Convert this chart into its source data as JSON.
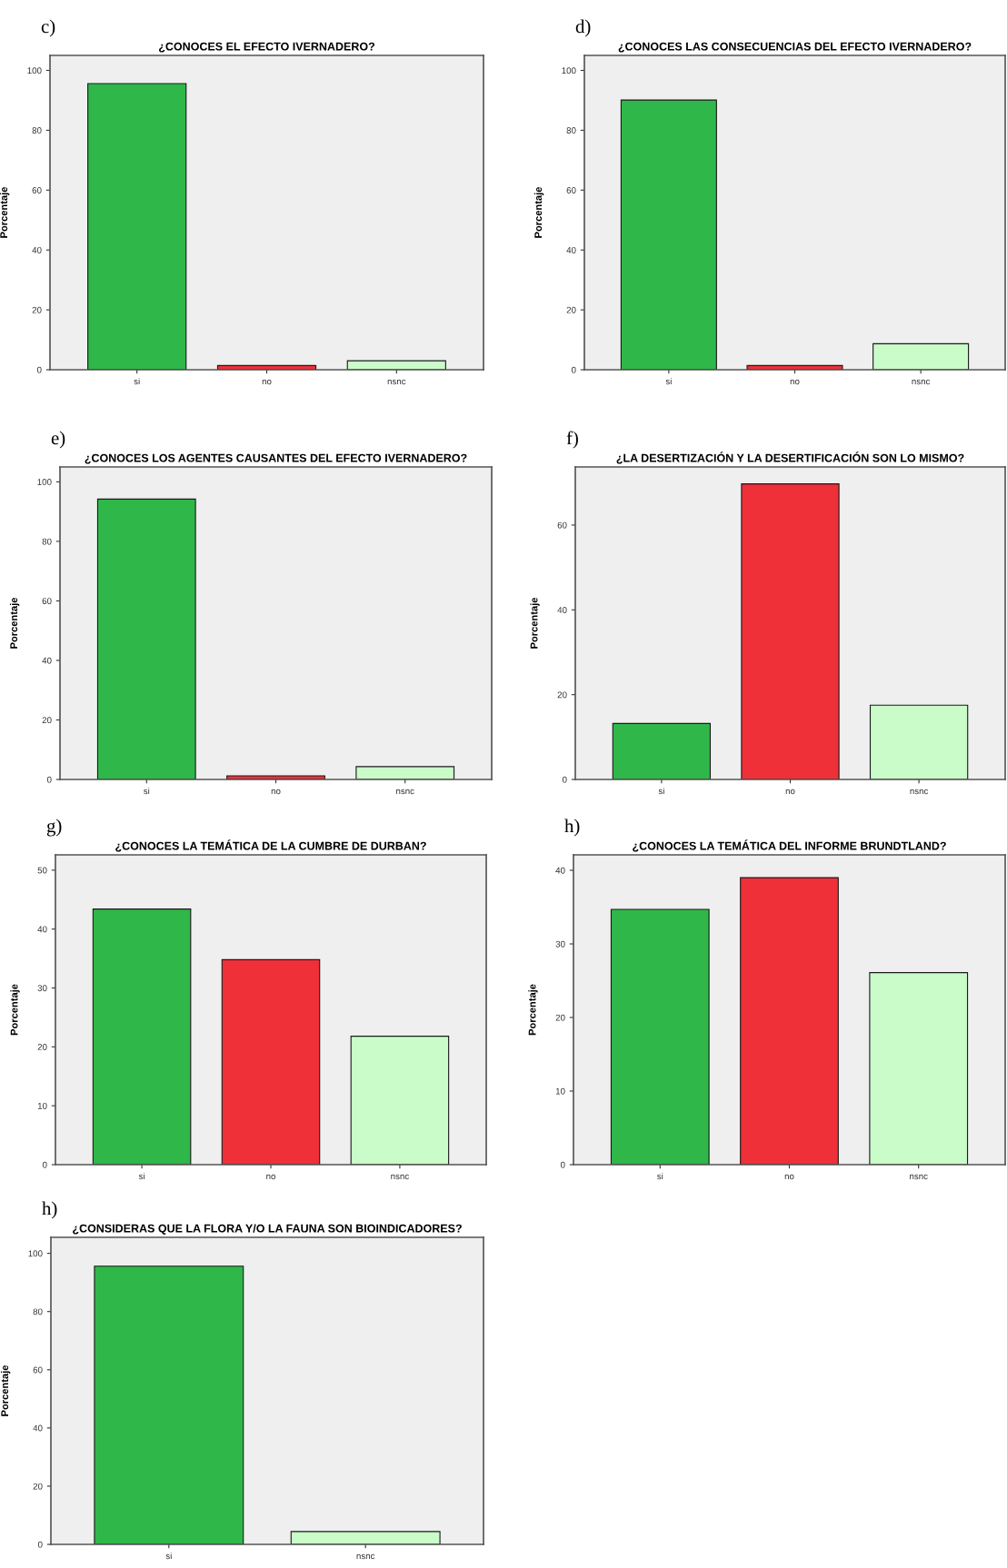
{
  "chart_data": [
    {
      "type": "bar",
      "title": "¿CONOCES EL EFECTO IVERNADERO?",
      "annotations": [
        "c)"
      ],
      "ylabel": "Porcentaje",
      "categories": [
        "si",
        "no",
        "nsnc"
      ],
      "values": [
        95.6,
        1.4,
        3.0
      ],
      "colors": [
        "#2fb74a",
        "#ef3038",
        "#c9fcc9"
      ],
      "ylim": [
        0,
        105
      ],
      "yticks": [
        0,
        20,
        40,
        60,
        80,
        100
      ],
      "grid": false,
      "legend": false
    },
    {
      "type": "bar",
      "title": "¿CONOCES LAS CONSECUENCIAS DEL EFECTO IVERNADERO?",
      "annotations": [
        "d)"
      ],
      "ylabel": "Porcentaje",
      "categories": [
        "si",
        "no",
        "nsnc"
      ],
      "values": [
        90.1,
        1.4,
        8.7
      ],
      "colors": [
        "#2fb74a",
        "#ef3038",
        "#c9fcc9"
      ],
      "ylim": [
        0,
        105
      ],
      "yticks": [
        0,
        20,
        40,
        60,
        80,
        100
      ],
      "grid": false,
      "legend": false
    },
    {
      "type": "bar",
      "title": "¿CONOCES LOS AGENTES CAUSANTES DEL EFECTO IVERNADERO?",
      "annotations": [
        "e)"
      ],
      "ylabel": "Porcentaje",
      "categories": [
        "si",
        "no",
        "nsnc"
      ],
      "values": [
        94.2,
        1.2,
        4.3
      ],
      "colors": [
        "#2fb74a",
        "#ef3038",
        "#c9fcc9"
      ],
      "ylim": [
        0,
        105
      ],
      "yticks": [
        0,
        20,
        40,
        60,
        80,
        100
      ],
      "grid": false,
      "legend": false
    },
    {
      "type": "bar",
      "title": "¿LA DESERTIZACIÓN Y LA DESERTIFICACIÓN SON LO MISMO?",
      "annotations": [
        "f)"
      ],
      "ylabel": "Porcentaje",
      "categories": [
        "si",
        "no",
        "nsnc"
      ],
      "values": [
        13.2,
        69.7,
        17.5
      ],
      "colors": [
        "#2fb74a",
        "#ef3038",
        "#c9fcc9"
      ],
      "ylim": [
        0,
        73.7
      ],
      "yticks": [
        0,
        20,
        40,
        60
      ],
      "grid": false,
      "legend": false
    },
    {
      "type": "bar",
      "title": "¿CONOCES LA TEMÁTICA DE LA CUMBRE DE DURBAN?",
      "annotations": [
        "g)"
      ],
      "ylabel": "Porcentaje",
      "categories": [
        "si",
        "no",
        "nsnc"
      ],
      "values": [
        43.4,
        34.8,
        21.8
      ],
      "colors": [
        "#2fb74a",
        "#ef3038",
        "#c9fcc9"
      ],
      "ylim": [
        0,
        52.6
      ],
      "yticks": [
        0,
        10,
        20,
        30,
        40,
        50
      ],
      "grid": false,
      "legend": false
    },
    {
      "type": "bar",
      "title": "¿CONOCES LA TEMÁTICA DEL INFORME BRUNDTLAND?",
      "annotations": [
        "h)"
      ],
      "ylabel": "Porcentaje",
      "categories": [
        "si",
        "no",
        "nsnc"
      ],
      "values": [
        34.7,
        39.0,
        26.1
      ],
      "colors": [
        "#2fb74a",
        "#ef3038",
        "#c9fcc9"
      ],
      "ylim": [
        0,
        42.1
      ],
      "yticks": [
        0,
        10,
        20,
        30,
        40
      ],
      "grid": false,
      "legend": false
    },
    {
      "type": "bar",
      "title": "¿CONSIDERAS QUE LA FLORA Y/O LA FAUNA SON BIOINDICADORES?",
      "annotations": [
        "h)"
      ],
      "ylabel": "Porcentaje",
      "categories": [
        "si",
        "nsnc"
      ],
      "values": [
        95.6,
        4.4
      ],
      "colors": [
        "#2fb74a",
        "#c9fcc9"
      ],
      "ylim": [
        0,
        105.5
      ],
      "yticks": [
        0,
        20,
        40,
        60,
        80,
        100
      ],
      "grid": false,
      "legend": false
    }
  ]
}
